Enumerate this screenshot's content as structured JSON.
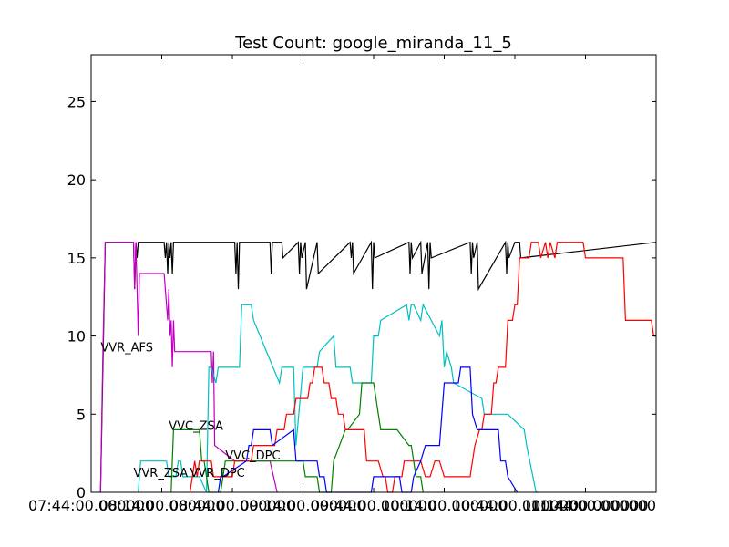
{
  "chart_data": {
    "type": "line",
    "title": "Test Count: google_miranda_11_5",
    "xlabel": "",
    "ylabel": "",
    "grid": false,
    "xlim": [
      464,
      704
    ],
    "ylim": [
      0,
      28
    ],
    "y_ticks": [
      0,
      5,
      10,
      15,
      20,
      25
    ],
    "x_ticks": [
      {
        "x": 464,
        "label": "07:44:00.000000"
      },
      {
        "x": 494,
        "label": "08:14:00.000000"
      },
      {
        "x": 524,
        "label": "08:44:00.000000"
      },
      {
        "x": 554,
        "label": "09:14:00.000000"
      },
      {
        "x": 584,
        "label": "09:44:00.000000"
      },
      {
        "x": 614,
        "label": "10:14:00.000000"
      },
      {
        "x": 644,
        "label": "10:44:00.000000"
      },
      {
        "x": 674,
        "label": "11:14:00.000000"
      },
      {
        "x": 704,
        "label": "11:44:00.000000"
      }
    ],
    "annotations": [
      {
        "text": "VVR_AFS",
        "x": 468,
        "y": 9
      },
      {
        "text": "VVC_ZSA",
        "x": 497,
        "y": 4
      },
      {
        "text": "VVR_ZSA",
        "x": 482,
        "y": 1
      },
      {
        "text": "VVR_DPC",
        "x": 506,
        "y": 1
      },
      {
        "text": "VVC_DPC",
        "x": 521,
        "y": 2.1
      }
    ],
    "series": [
      {
        "color": "#000000",
        "x": [
          468,
          470,
          481,
          482,
          482.5,
          483,
          483.5,
          484,
          495,
          495.5,
          496,
          496.5,
          497,
          497.5,
          498,
          498.5,
          499,
          525,
          525.5,
          526,
          526.5,
          527,
          540,
          540.5,
          541,
          545,
          545.5,
          552,
          552.5,
          553,
          553.5,
          555,
          555.5,
          560,
          560.5,
          574,
          574.5,
          575,
          575.5,
          583,
          583.5,
          584,
          584.5,
          599,
          599.5,
          600,
          600.5,
          604,
          604.5,
          607,
          607.5,
          608,
          608.5,
          625,
          625.5,
          626,
          626.5,
          628,
          628.5,
          640,
          640.5,
          641,
          641.5,
          644,
          646,
          646.5,
          704
        ],
        "y": [
          0,
          16,
          16,
          16,
          13,
          16,
          15,
          16,
          16,
          15,
          16,
          14,
          16,
          15,
          16,
          14,
          16,
          16,
          14,
          16,
          13,
          16,
          16,
          14,
          16,
          16,
          15,
          16,
          14,
          16,
          15,
          16,
          13,
          16,
          14,
          16,
          15,
          16,
          14,
          16,
          13,
          16,
          15,
          16,
          14,
          16,
          15,
          16,
          14,
          16,
          13,
          16,
          15,
          16,
          14,
          16,
          15,
          16,
          13,
          16,
          14,
          16,
          15,
          16,
          16,
          15,
          16
        ]
      },
      {
        "color": "#bf00bf",
        "x": [
          468,
          469,
          470,
          482,
          482.5,
          483,
          484,
          484.5,
          495,
          495.5,
          496,
          496.5,
          497,
          497.5,
          498,
          498.5,
          499,
          499.5,
          506,
          507,
          508,
          509,
          515,
          515.5,
          516,
          516.5,
          525,
          526,
          527,
          538,
          539,
          540,
          543
        ],
        "y": [
          0,
          9,
          16,
          16,
          13,
          16,
          10,
          14,
          14,
          13,
          12,
          11,
          13,
          10,
          11,
          8,
          11,
          9,
          9,
          9,
          9,
          9,
          9,
          7,
          9,
          3,
          2,
          2,
          2,
          2,
          2,
          2,
          0
        ]
      },
      {
        "color": "#00bfbf",
        "x": [
          484,
          485,
          496,
          497,
          498,
          499,
          500,
          501,
          502,
          503,
          510,
          513,
          514,
          515,
          517,
          518,
          527,
          528,
          532,
          533,
          544,
          545,
          550,
          551,
          554,
          555,
          560,
          561,
          567,
          568,
          574,
          575,
          583,
          584,
          586,
          587,
          598,
          599,
          600,
          601,
          604,
          605,
          612,
          613,
          614,
          615,
          617,
          618,
          630,
          631,
          640,
          641,
          648,
          649,
          653,
          654
        ],
        "y": [
          0,
          2,
          2,
          1,
          1,
          1,
          1,
          2,
          2,
          1,
          1,
          0,
          8,
          8,
          7,
          8,
          8,
          12,
          12,
          11,
          7,
          8,
          8,
          3,
          8,
          8,
          8,
          9,
          10,
          8,
          8,
          7,
          7,
          10,
          10,
          11,
          12,
          11,
          12,
          12,
          11,
          12,
          10,
          11,
          8,
          9,
          8,
          7,
          6,
          5,
          5,
          5,
          4,
          3,
          0,
          0
        ]
      },
      {
        "color": "#008000",
        "x": [
          498,
          499,
          510,
          511,
          512,
          513,
          514,
          519,
          520,
          521,
          554,
          555,
          560,
          561,
          566,
          567,
          572,
          573,
          578,
          579,
          583,
          584,
          587,
          588,
          593,
          594,
          599,
          600,
          601,
          602,
          604,
          605
        ],
        "y": [
          0,
          4,
          4,
          2,
          2,
          1,
          0,
          0,
          1,
          2,
          2,
          1,
          1,
          0,
          0,
          2,
          4,
          4,
          5,
          7,
          7,
          7,
          4,
          4,
          4,
          4,
          3,
          3,
          2,
          1,
          1,
          0
        ]
      },
      {
        "color": "#ff0000",
        "x": [
          506,
          507,
          508,
          509,
          510,
          515,
          516,
          524,
          525,
          532,
          533,
          542,
          543,
          546,
          547,
          550,
          551,
          556,
          557,
          558,
          559,
          560,
          562,
          563,
          565,
          566,
          568,
          569,
          571,
          572,
          580,
          581,
          584,
          586,
          588,
          589,
          590,
          592,
          593,
          596,
          597,
          604,
          606,
          608,
          610,
          612,
          614,
          616,
          625,
          626,
          627,
          629,
          630,
          631,
          634,
          635,
          636,
          637,
          638,
          640,
          641,
          643,
          644,
          645,
          646,
          648,
          650,
          651,
          652,
          654,
          655,
          657,
          658,
          659,
          661,
          662,
          673,
          674,
          690,
          691,
          702,
          703,
          704
        ],
        "y": [
          0,
          1,
          2,
          1,
          2,
          2,
          1,
          1,
          2,
          2,
          3,
          3,
          4,
          4,
          5,
          5,
          6,
          6,
          7,
          7,
          8,
          8,
          8,
          7,
          7,
          6,
          6,
          5,
          5,
          4,
          4,
          2,
          2,
          2,
          1,
          1,
          0,
          0,
          1,
          1,
          2,
          2,
          1,
          1,
          2,
          2,
          1,
          1,
          1,
          2,
          3,
          4,
          4,
          5,
          5,
          7,
          7,
          8,
          8,
          8,
          11,
          11,
          12,
          12,
          15,
          15,
          15,
          16,
          16,
          16,
          15,
          16,
          15,
          16,
          15,
          16,
          16,
          15,
          15,
          11,
          11,
          10,
          10
        ]
      },
      {
        "color": "#0000ff",
        "x": [
          518,
          519,
          520,
          530,
          531,
          532,
          533,
          540,
          541,
          550,
          551,
          560,
          561,
          563,
          564,
          583,
          584,
          595,
          596,
          600,
          601,
          604,
          606,
          612,
          613,
          614,
          620,
          621,
          625,
          626,
          628,
          629,
          637,
          638,
          640,
          641,
          645
        ],
        "y": [
          0,
          1,
          1,
          2,
          3,
          3,
          4,
          4,
          3,
          4,
          2,
          2,
          1,
          1,
          0,
          0,
          1,
          1,
          0,
          0,
          1,
          2,
          3,
          3,
          5,
          7,
          7,
          8,
          8,
          5,
          4,
          4,
          4,
          2,
          2,
          1,
          0
        ]
      }
    ]
  }
}
